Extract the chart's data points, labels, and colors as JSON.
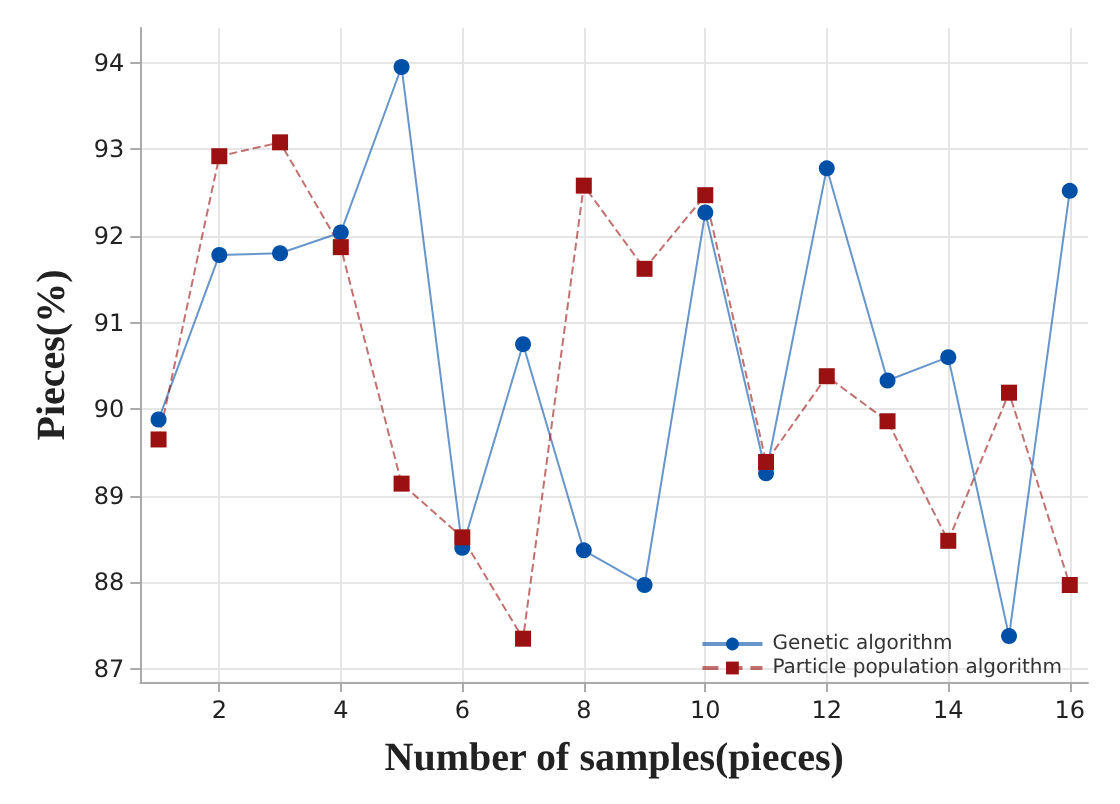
{
  "chart_data": {
    "type": "line",
    "xlabel": "Number of samples(pieces)",
    "ylabel": "Pieces(%)",
    "x": [
      1,
      2,
      3,
      4,
      5,
      6,
      7,
      8,
      9,
      10,
      11,
      12,
      13,
      14,
      15,
      16
    ],
    "series": [
      {
        "name": "Genetic algorithm",
        "color": "#0050a8",
        "marker": "circle",
        "line_style": "solid",
        "values": [
          89.88,
          91.78,
          91.8,
          92.04,
          93.95,
          88.4,
          90.75,
          88.37,
          87.97,
          92.27,
          89.26,
          92.78,
          90.33,
          90.6,
          87.38,
          92.52
        ]
      },
      {
        "name": "Particle population algorithm",
        "color": "#9b1010",
        "marker": "square",
        "line_style": "dashed",
        "values": [
          89.65,
          92.92,
          93.08,
          91.87,
          89.14,
          88.52,
          87.35,
          92.58,
          91.62,
          92.47,
          89.39,
          90.38,
          89.86,
          88.48,
          90.19,
          87.97
        ]
      }
    ],
    "xlim": [
      0.7,
      16.3
    ],
    "xticks": [
      2,
      4,
      6,
      8,
      10,
      12,
      14,
      16
    ],
    "ylim": [
      86.85,
      94.4
    ],
    "yticks": [
      87,
      88,
      89,
      90,
      91,
      92,
      93,
      94
    ],
    "grid": true,
    "legend": "bottom right"
  }
}
